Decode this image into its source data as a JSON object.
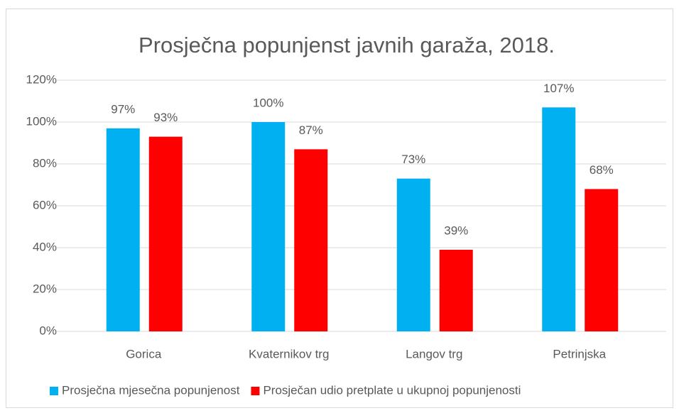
{
  "chart_data": {
    "type": "bar",
    "title": "Prosječna popunjenst javnih garaža, 2018.",
    "categories": [
      "Gorica",
      "Kvaternikov trg",
      "Langov trg",
      "Petrinjska"
    ],
    "series": [
      {
        "name": "Prosječna mjesečna popunjenost",
        "color": "#00b0f0",
        "values": [
          97,
          100,
          73,
          107
        ],
        "value_labels": [
          "97%",
          "100%",
          "73%",
          "107%"
        ]
      },
      {
        "name": "Prosječan udio pretplate u ukupnoj popunjenosti",
        "color": "#ff0000",
        "values": [
          93,
          87,
          39,
          68
        ],
        "value_labels": [
          "93%",
          "87%",
          "39%",
          "68%"
        ]
      }
    ],
    "ylim": [
      0,
      120
    ],
    "yticks": [
      {
        "value": 0,
        "label": "0%"
      },
      {
        "value": 20,
        "label": "20%"
      },
      {
        "value": 40,
        "label": "40%"
      },
      {
        "value": 60,
        "label": "60%"
      },
      {
        "value": 80,
        "label": "80%"
      },
      {
        "value": 100,
        "label": "100%"
      },
      {
        "value": 120,
        "label": "120%"
      }
    ],
    "grid": true,
    "legend": "bottom"
  }
}
